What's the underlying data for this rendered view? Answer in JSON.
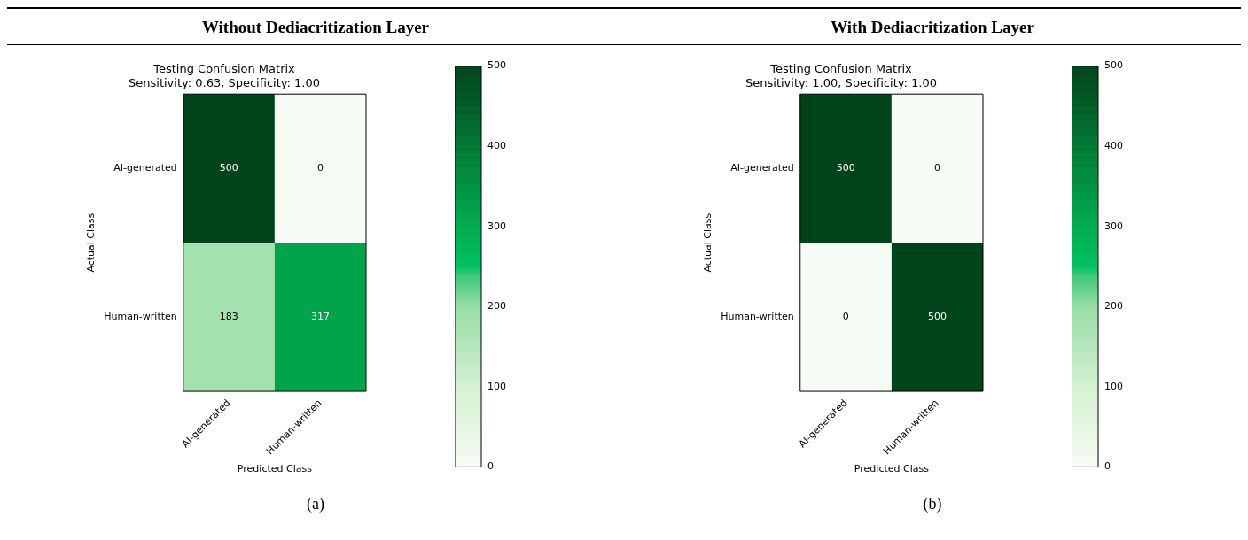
{
  "chart_data": [
    {
      "type": "heatmap",
      "title": "Testing Confusion Matrix",
      "subtitle": "Sensitivity: 0.63, Specificity: 1.00",
      "xlabel": "Predicted Class",
      "ylabel": "Actual Class",
      "categories": [
        "AI-generated",
        "Human-written"
      ],
      "y_categories": [
        "AI-generated",
        "Human-written"
      ],
      "cells": [
        [
          500,
          0
        ],
        [
          183,
          317
        ]
      ],
      "clim": [
        0,
        500
      ],
      "cticks": [
        0,
        100,
        200,
        300,
        400,
        500
      ],
      "data_labels": true,
      "annotations": [
        "Without Dediacritization Layer",
        "(a)"
      ]
    },
    {
      "type": "heatmap",
      "title": "Testing Confusion Matrix",
      "subtitle": "Sensitivity: 1.00, Specificity: 1.00",
      "xlabel": "Predicted Class",
      "ylabel": "Actual Class",
      "categories": [
        "AI-generated",
        "Human-written"
      ],
      "y_categories": [
        "AI-generated",
        "Human-written"
      ],
      "cells": [
        [
          500,
          0
        ],
        [
          0,
          500
        ]
      ],
      "clim": [
        0,
        500
      ],
      "cticks": [
        0,
        100,
        200,
        300,
        400,
        500
      ],
      "data_labels": true,
      "annotations": [
        "With Dediacritization Layer",
        "(b)"
      ]
    }
  ]
}
